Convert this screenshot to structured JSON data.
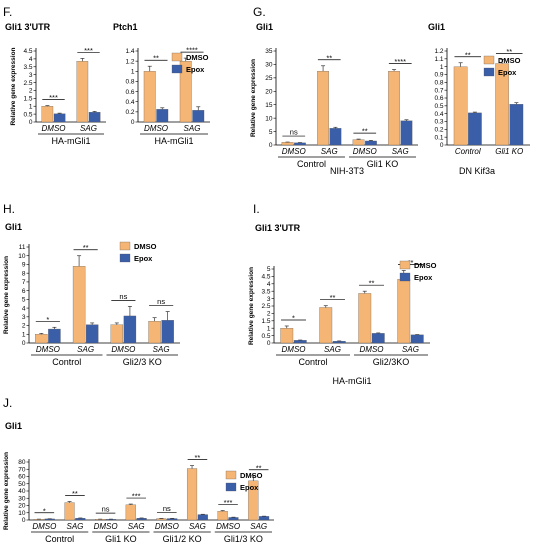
{
  "colors": {
    "DMSO": "#f5b574",
    "Epox": "#3a5ea8",
    "axis": "#000000",
    "err": "#333333"
  },
  "chart_data": [
    {
      "id": "F1",
      "panel_label": "F.",
      "type": "bar",
      "title": "Gli1 3'UTR",
      "ylabel": "Relative gene expression",
      "ylim": [
        0,
        4.5
      ],
      "yticks": [
        0,
        0.5,
        1,
        1.5,
        2,
        2.5,
        3,
        3.5,
        4,
        4.5
      ],
      "categories": [
        "DMSO",
        "SAG"
      ],
      "series": [
        {
          "name": "DMSO",
          "values": [
            1.0,
            3.85
          ],
          "errors": [
            0.04,
            0.18
          ]
        },
        {
          "name": "Epox",
          "values": [
            0.52,
            0.62
          ],
          "errors": [
            0.04,
            0.05
          ]
        }
      ],
      "significance": [
        "***",
        "***"
      ],
      "groups": [
        {
          "label": "HA-mGli1",
          "span": [
            0,
            1
          ]
        }
      ],
      "legend": []
    },
    {
      "id": "F2",
      "type": "bar",
      "title": "Ptch1",
      "ylabel": "",
      "ylim": [
        0,
        1.4
      ],
      "yticks": [
        0,
        0.2,
        0.4,
        0.6,
        0.8,
        1,
        1.2,
        1.4
      ],
      "categories": [
        "DMSO",
        "SAG"
      ],
      "series": [
        {
          "name": "DMSO",
          "values": [
            1.0,
            1.2
          ],
          "errors": [
            0.1,
            0.06
          ]
        },
        {
          "name": "Epox",
          "values": [
            0.25,
            0.23
          ],
          "errors": [
            0.03,
            0.07
          ]
        }
      ],
      "significance": [
        "**",
        "****"
      ],
      "groups": [
        {
          "label": "HA-mGli1",
          "span": [
            0,
            1
          ]
        }
      ],
      "legend": [
        "DMSO",
        "Epox"
      ]
    },
    {
      "id": "G1",
      "panel_label": "G.",
      "type": "bar",
      "title": "Gli1",
      "ylabel": "Relative gene expression",
      "ylim": [
        0,
        35
      ],
      "yticks": [
        0,
        5,
        10,
        15,
        20,
        25,
        30,
        35
      ],
      "categories": [
        "DMSO",
        "SAG",
        "DMSO",
        "SAG"
      ],
      "series": [
        {
          "name": "DMSO",
          "values": [
            1.0,
            27.5,
            2.0,
            27.5
          ],
          "errors": [
            0.1,
            2.0,
            0.2,
            0.6
          ]
        },
        {
          "name": "Epox",
          "values": [
            0.8,
            6.2,
            1.5,
            9.0
          ],
          "errors": [
            0.1,
            0.4,
            0.2,
            0.4
          ]
        }
      ],
      "significance": [
        "ns",
        "**",
        "**",
        "****"
      ],
      "groups": [
        {
          "label": "Control",
          "span": [
            0,
            1
          ]
        },
        {
          "label": "Gli1 KO",
          "span": [
            2,
            3
          ]
        }
      ],
      "footer": "NIH-3T3",
      "legend": []
    },
    {
      "id": "G2",
      "type": "bar",
      "title": "Gli1",
      "ylabel": "",
      "ylim": [
        0,
        1.2
      ],
      "yticks": [
        0,
        0.1,
        0.2,
        0.3,
        0.4,
        0.5,
        0.6,
        0.7,
        0.8,
        0.9,
        1.0,
        1.1,
        1.2
      ],
      "categories": [
        "Control",
        "Gli1 KO"
      ],
      "series": [
        {
          "name": "DMSO",
          "values": [
            1.0,
            1.04
          ],
          "errors": [
            0.05,
            0.05
          ]
        },
        {
          "name": "Epox",
          "values": [
            0.41,
            0.52
          ],
          "errors": [
            0.01,
            0.02
          ]
        }
      ],
      "significance": [
        "**",
        "**"
      ],
      "groups": [],
      "footer": "DN Kif3a",
      "legend": [
        "DMSO",
        "Epox"
      ]
    },
    {
      "id": "H",
      "panel_label": "H.",
      "type": "bar",
      "title": "Gli1",
      "ylabel": "Relative gene expression",
      "ylim": [
        0,
        11
      ],
      "yticks": [
        0,
        1,
        2,
        3,
        4,
        5,
        6,
        7,
        8,
        9,
        10,
        11
      ],
      "categories": [
        "DMSO",
        "SAG",
        "DMSO",
        "SAG"
      ],
      "series": [
        {
          "name": "DMSO",
          "values": [
            1.0,
            8.8,
            2.1,
            2.5
          ],
          "errors": [
            0.1,
            1.2,
            0.2,
            0.4
          ]
        },
        {
          "name": "Epox",
          "values": [
            1.6,
            2.1,
            3.1,
            2.6
          ],
          "errors": [
            0.2,
            0.2,
            1.1,
            1.0
          ]
        }
      ],
      "significance": [
        "*",
        "**",
        "ns",
        "ns"
      ],
      "groups": [
        {
          "label": "Control",
          "span": [
            0,
            1
          ]
        },
        {
          "label": "Gli2/3 KO",
          "span": [
            2,
            3
          ]
        }
      ],
      "legend": [
        "DMSO",
        "Epox"
      ]
    },
    {
      "id": "I",
      "panel_label": "I.",
      "type": "bar",
      "title": "Gli1 3'UTR",
      "ylabel": "Relative gene expression",
      "ylim": [
        0,
        5
      ],
      "yticks": [
        0,
        0.5,
        1,
        1.5,
        2,
        2.5,
        3,
        3.5,
        4,
        4.5,
        5
      ],
      "categories": [
        "DMSO",
        "SAG",
        "DMSO",
        "SAG"
      ],
      "series": [
        {
          "name": "DMSO",
          "values": [
            1.0,
            2.4,
            3.35,
            4.3
          ],
          "errors": [
            0.15,
            0.12,
            0.15,
            0.6
          ]
        },
        {
          "name": "Epox",
          "values": [
            0.18,
            0.12,
            0.65,
            0.55
          ],
          "errors": [
            0.02,
            0.02,
            0.03,
            0.02
          ]
        }
      ],
      "significance": [
        "*",
        "**",
        "**",
        "**"
      ],
      "groups": [
        {
          "label": "Control",
          "span": [
            0,
            1
          ]
        },
        {
          "label": "Gli2/3KO",
          "span": [
            2,
            3
          ]
        }
      ],
      "footer": "HA-mGli1",
      "legend": [
        "DMSO",
        "Epox"
      ]
    },
    {
      "id": "J",
      "panel_label": "J.",
      "type": "bar",
      "title": "Gli1",
      "ylabel": "Relative gene expression",
      "ylim": [
        0,
        80
      ],
      "yticks": [
        0,
        10,
        20,
        30,
        40,
        50,
        60,
        70,
        80
      ],
      "categories": [
        "DMSO",
        "SAG",
        "DMSO",
        "SAG",
        "DMSO",
        "SAG",
        "DMSO",
        "SAG"
      ],
      "series": [
        {
          "name": "DMSO",
          "values": [
            1.0,
            24.0,
            1.0,
            21.0,
            2.0,
            71.0,
            12.0,
            54.0
          ],
          "errors": [
            0.2,
            1.5,
            0.2,
            1.0,
            0.3,
            4.0,
            1.0,
            7.0
          ]
        },
        {
          "name": "Epox",
          "values": [
            1.5,
            2.5,
            1.0,
            2.5,
            2.0,
            7.5,
            3.5,
            5.0
          ],
          "errors": [
            0.2,
            0.3,
            0.2,
            0.3,
            0.3,
            0.4,
            0.4,
            0.3
          ]
        }
      ],
      "significance": [
        "*",
        "**",
        "ns",
        "***",
        "ns",
        "**",
        "***",
        "**"
      ],
      "groups": [
        {
          "label": "Control",
          "span": [
            0,
            1
          ]
        },
        {
          "label": "Gli1 KO",
          "span": [
            2,
            3
          ]
        },
        {
          "label": "Gli1/2 KO",
          "span": [
            4,
            5
          ]
        },
        {
          "label": "Gli1/3 KO",
          "span": [
            6,
            7
          ]
        }
      ],
      "legend": [
        "DMSO",
        "Epox"
      ]
    }
  ]
}
